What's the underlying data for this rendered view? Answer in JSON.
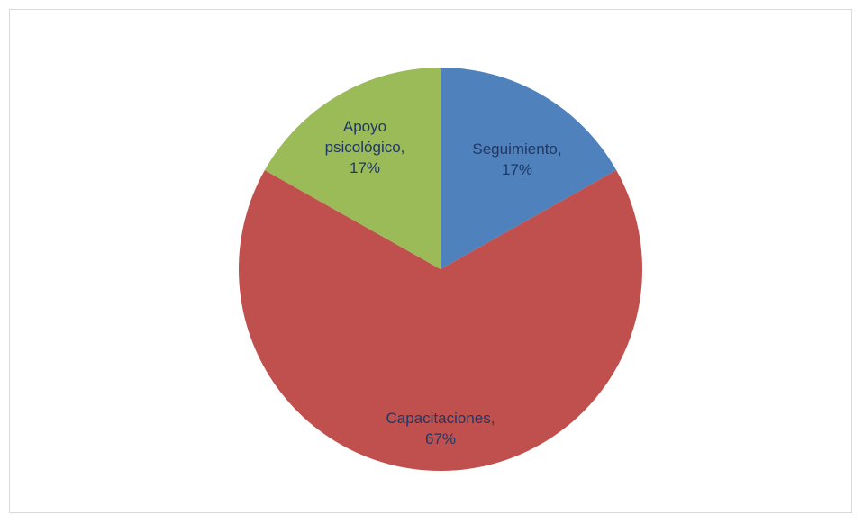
{
  "chart_data": {
    "type": "pie",
    "title": "",
    "start_angle_deg": 0,
    "direction": "clockwise",
    "slices": [
      {
        "label": "Seguimiento",
        "value": 17,
        "display": "17%",
        "color": "#4f81bd",
        "label_color": "#1f3864"
      },
      {
        "label": "Capacitaciones",
        "value": 67,
        "display": "67%",
        "color": "#c0504d",
        "label_color": "#1f3864"
      },
      {
        "label": "Apoyo psicológico",
        "value": 17,
        "display": "17%",
        "color": "#9bbb59",
        "label_color": "#1f3864"
      }
    ],
    "legend": "none",
    "frame_border_color": "#d9d9d9"
  }
}
